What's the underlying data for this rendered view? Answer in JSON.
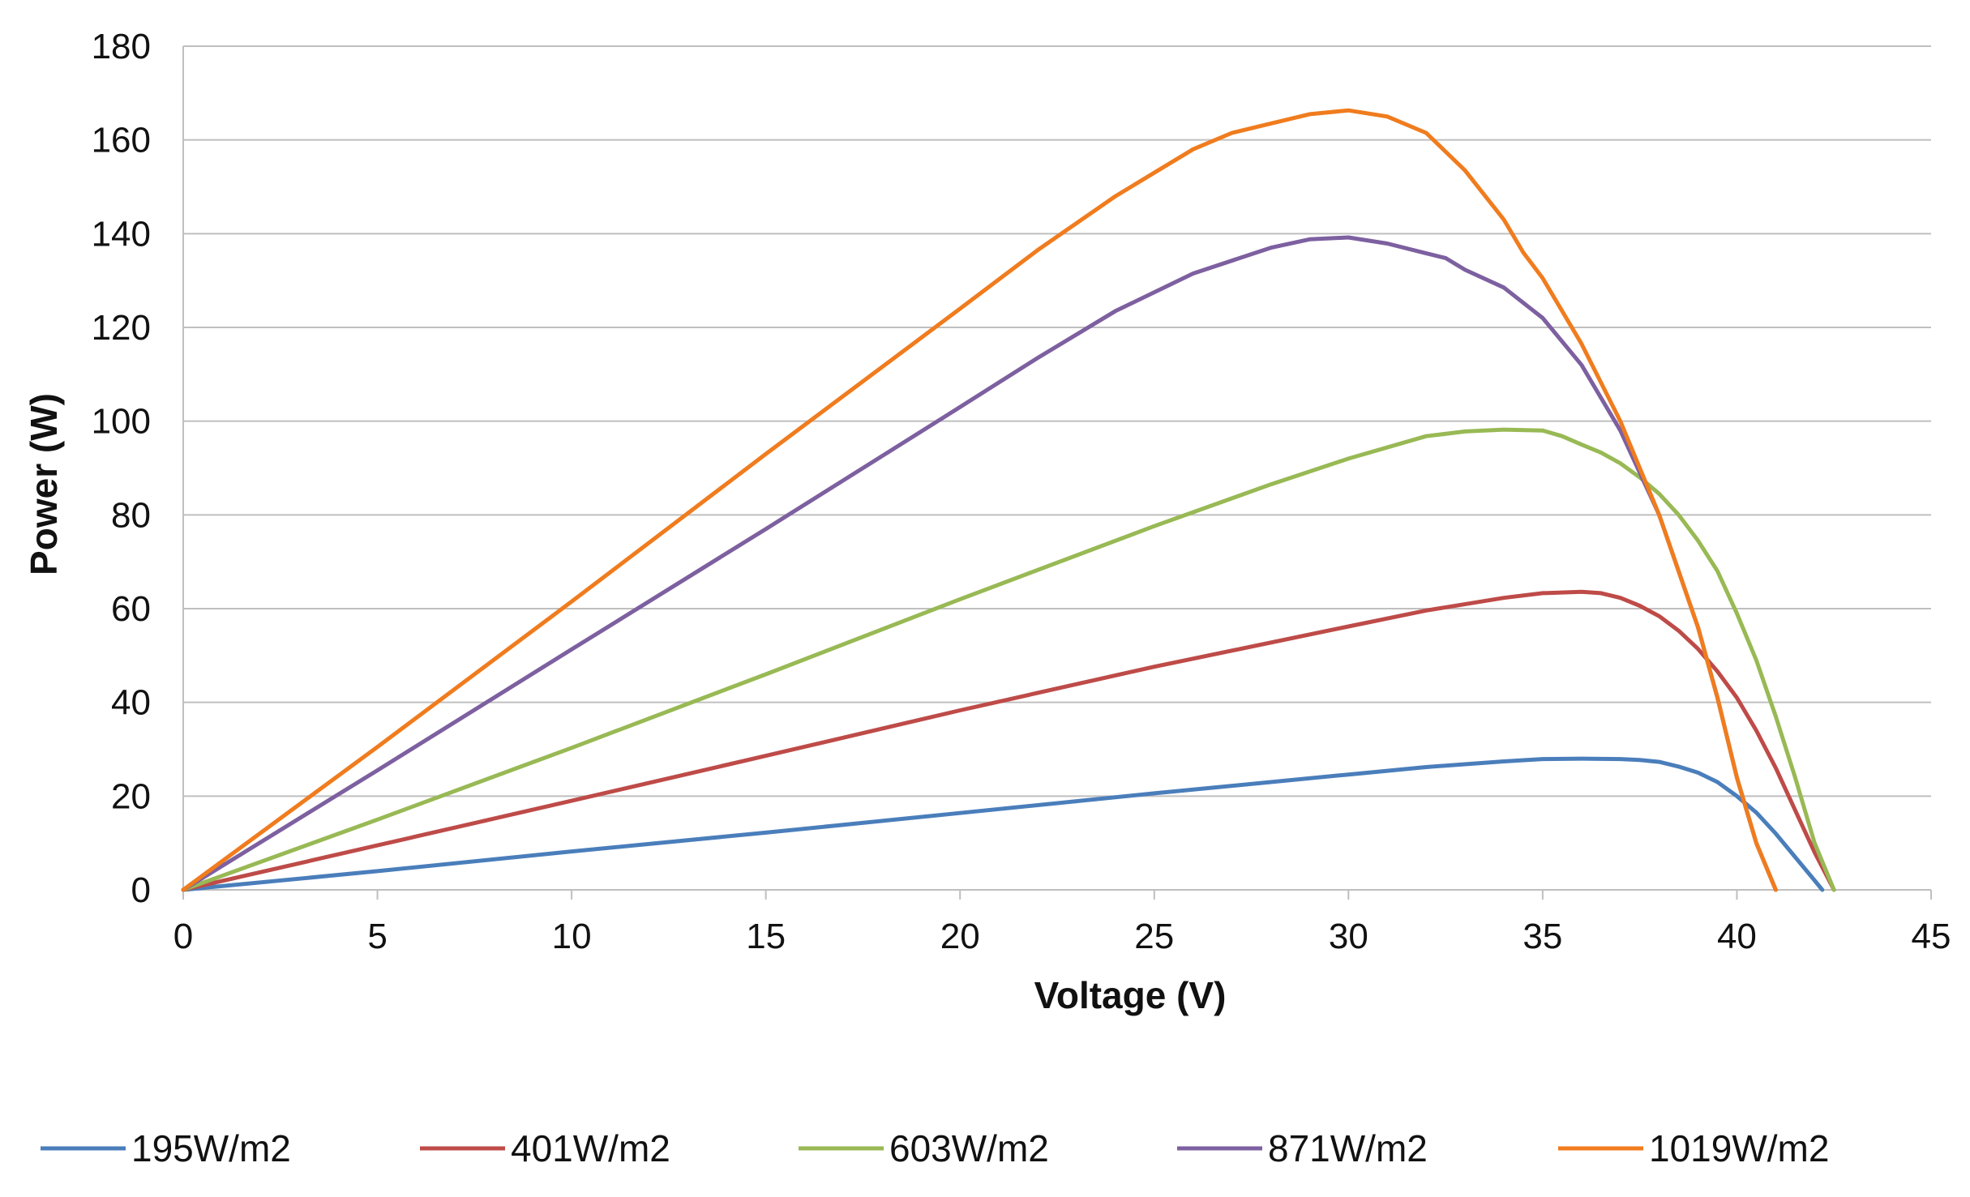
{
  "chart_data": {
    "type": "line",
    "title": "",
    "xlabel": "Voltage (V)",
    "ylabel": "Power (W)",
    "xlim": [
      0,
      45
    ],
    "ylim": [
      0,
      180
    ],
    "x_ticks": [
      "0",
      "5",
      "10",
      "15",
      "20",
      "25",
      "30",
      "35",
      "40",
      "45"
    ],
    "y_ticks": [
      "0",
      "20",
      "40",
      "60",
      "80",
      "100",
      "120",
      "140",
      "160",
      "180"
    ],
    "grid": true,
    "legend_position": "bottom",
    "series": [
      {
        "name": "195W/m2",
        "color": "#4a7ebb",
        "x": [
          0,
          5,
          10,
          15,
          20,
          25,
          28,
          30,
          32,
          34,
          35,
          36,
          37,
          37.5,
          38,
          38.5,
          39,
          39.5,
          40,
          40.5,
          41,
          41.5,
          42,
          42.2
        ],
        "y": [
          0,
          4,
          8.2,
          12.2,
          16.4,
          20.6,
          23,
          24.6,
          26.2,
          27.4,
          27.9,
          28,
          27.9,
          27.7,
          27.3,
          26.3,
          25,
          23,
          20,
          16.5,
          12,
          7,
          2,
          0
        ]
      },
      {
        "name": "401W/m2",
        "color": "#be4b48",
        "x": [
          0,
          5,
          10,
          15,
          20,
          25,
          30,
          32,
          34,
          35,
          36,
          36.5,
          37,
          37.5,
          38,
          38.5,
          39,
          39.5,
          40,
          40.5,
          41,
          41.5,
          42,
          42.5
        ],
        "y": [
          0,
          9.5,
          19,
          28.6,
          38.3,
          47.6,
          56.2,
          59.6,
          62.3,
          63.3,
          63.6,
          63.3,
          62.3,
          60.6,
          58.4,
          55.3,
          51.4,
          46.6,
          41,
          34,
          26,
          17,
          8,
          0
        ]
      },
      {
        "name": "603W/m2",
        "color": "#98b954",
        "x": [
          0,
          5,
          10,
          15,
          20,
          25,
          28,
          30,
          32,
          33,
          34,
          35,
          35.5,
          36,
          36.5,
          37,
          37.5,
          38,
          38.5,
          39,
          39.5,
          40,
          40.5,
          41,
          41.5,
          42,
          42.5
        ],
        "y": [
          0,
          15,
          30.3,
          46,
          62,
          77.6,
          86.5,
          92,
          96.8,
          97.8,
          98.2,
          98,
          96.8,
          95,
          93.3,
          91,
          88,
          84.5,
          80,
          74.5,
          68,
          59,
          49,
          37,
          24,
          10,
          0
        ]
      },
      {
        "name": "871W/m2",
        "color": "#7d60a0",
        "x": [
          0,
          5,
          10,
          15,
          20,
          22,
          24,
          26,
          28,
          29,
          30,
          31,
          32,
          32.5,
          33,
          34,
          35,
          36,
          37,
          38,
          39,
          39.5,
          40,
          40.5,
          41
        ],
        "y": [
          0,
          25.5,
          51.3,
          77,
          103,
          113.5,
          123.5,
          131.5,
          137,
          138.8,
          139.2,
          137.9,
          135.8,
          134.8,
          132.3,
          128.5,
          122,
          112,
          98,
          80,
          56,
          41,
          24,
          10,
          0
        ]
      },
      {
        "name": "1019W/m2",
        "color": "#f07c1e",
        "x": [
          0,
          5,
          10,
          15,
          20,
          22,
          24,
          26,
          27,
          28,
          29,
          30,
          31,
          32,
          33,
          34,
          34.5,
          35,
          36,
          37,
          38,
          39,
          39.5,
          40,
          40.5,
          41
        ],
        "y": [
          0,
          30.5,
          61.5,
          93,
          124,
          136.5,
          148,
          158,
          161.5,
          163.5,
          165.5,
          166.3,
          165,
          161.5,
          153.5,
          143,
          136,
          130.5,
          116.5,
          100,
          80,
          56,
          41,
          24,
          10,
          0
        ]
      }
    ]
  }
}
